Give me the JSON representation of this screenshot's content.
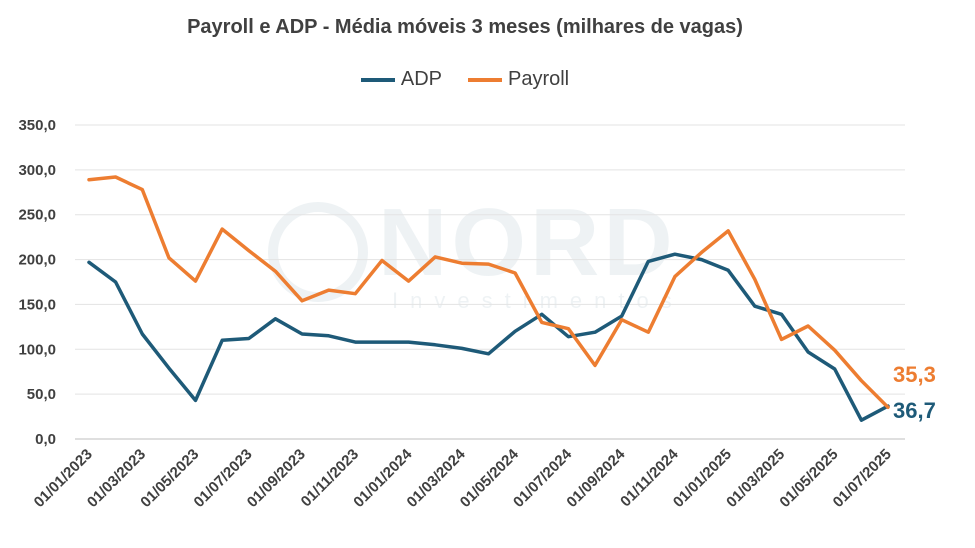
{
  "title": "Payroll e ADP - Média móveis 3 meses (milhares de vagas)",
  "watermark": {
    "main": "NORD",
    "sub": "Investimentos"
  },
  "chart_data": {
    "type": "line",
    "title": "Payroll e ADP - Média móveis 3 meses (milhares de vagas)",
    "legend_position": "top",
    "grid": true,
    "ylim": [
      0,
      350
    ],
    "y_ticks": [
      "0,0",
      "50,0",
      "100,0",
      "150,0",
      "200,0",
      "250,0",
      "300,0",
      "350,0"
    ],
    "y_tick_values": [
      0,
      50,
      100,
      150,
      200,
      250,
      300,
      350
    ],
    "x_tick_labels": [
      "01/01/2023",
      "01/03/2023",
      "01/05/2023",
      "01/07/2023",
      "01/09/2023",
      "01/11/2023",
      "01/01/2024",
      "01/03/2024",
      "01/05/2024",
      "01/07/2024",
      "01/09/2024",
      "01/11/2024",
      "01/01/2025",
      "01/03/2025",
      "01/05/2025",
      "01/07/2025"
    ],
    "categories": [
      "01/01/2023",
      "01/02/2023",
      "01/03/2023",
      "01/04/2023",
      "01/05/2023",
      "01/06/2023",
      "01/07/2023",
      "01/08/2023",
      "01/09/2023",
      "01/10/2023",
      "01/11/2023",
      "01/12/2023",
      "01/01/2024",
      "01/02/2024",
      "01/03/2024",
      "01/04/2024",
      "01/05/2024",
      "01/06/2024",
      "01/07/2024",
      "01/08/2024",
      "01/09/2024",
      "01/10/2024",
      "01/11/2024",
      "01/12/2024",
      "01/01/2025",
      "01/02/2025",
      "01/03/2025",
      "01/04/2025",
      "01/05/2025",
      "01/06/2025",
      "01/07/2025"
    ],
    "series": [
      {
        "name": "ADP",
        "color": "#1e5a78",
        "values": [
          197,
          175,
          117,
          79,
          43,
          110,
          112,
          134,
          117,
          115,
          108,
          108,
          108,
          105,
          101,
          95,
          120,
          139,
          114,
          119,
          137,
          198,
          206,
          200,
          188,
          148,
          139,
          97,
          78,
          21,
          36.7
        ],
        "end_label": "36,7"
      },
      {
        "name": "Payroll",
        "color": "#ed7d31",
        "values": [
          289,
          292,
          278,
          202,
          176,
          234,
          210,
          187,
          154,
          166,
          162,
          199,
          176,
          203,
          196,
          195,
          185,
          130,
          123,
          82,
          133,
          119,
          181,
          208,
          232,
          178,
          111,
          126,
          99,
          65,
          35.3
        ],
        "end_label": "35,3"
      }
    ]
  }
}
